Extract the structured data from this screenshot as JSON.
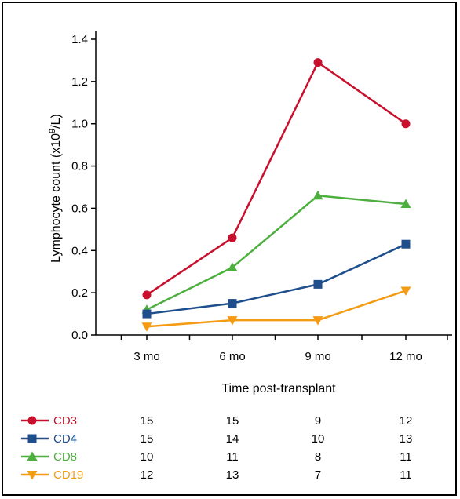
{
  "chart_data": {
    "type": "line",
    "title": "",
    "xlabel": "Time post-transplant",
    "ylabel": "Lymphocyte count (x10",
    "ylabel_sup": "9",
    "ylabel_end": "/L)",
    "categories": [
      "3 mo",
      "6 mo",
      "9 mo",
      "12 mo"
    ],
    "ylim": [
      0.0,
      1.4
    ],
    "yticks": [
      0.0,
      0.2,
      0.4,
      0.6,
      0.8,
      1.0,
      1.2,
      1.4
    ],
    "ytick_labels": [
      "0.0",
      "0.2",
      "0.4",
      "0.6",
      "0.8",
      "1.0",
      "1.2",
      "1.4"
    ],
    "grid": false,
    "legend": "bottom-left",
    "series": [
      {
        "name": "CD3",
        "color": "#c8102e",
        "marker": "circle",
        "values": [
          0.19,
          0.46,
          1.29,
          1.0
        ],
        "counts": [
          "15",
          "15",
          "9",
          "12"
        ]
      },
      {
        "name": "CD4",
        "color": "#1f4e8c",
        "marker": "square",
        "values": [
          0.1,
          0.15,
          0.24,
          0.43
        ],
        "counts": [
          "15",
          "14",
          "10",
          "13"
        ]
      },
      {
        "name": "CD8",
        "color": "#4caf3e",
        "marker": "triangle-up",
        "values": [
          0.12,
          0.32,
          0.66,
          0.62
        ],
        "counts": [
          "10",
          "11",
          "8",
          "11"
        ]
      },
      {
        "name": "CD19",
        "color": "#f39c12",
        "marker": "triangle-down",
        "values": [
          0.04,
          0.07,
          0.07,
          0.21
        ],
        "counts": [
          "12",
          "13",
          "7",
          "11"
        ]
      }
    ]
  }
}
